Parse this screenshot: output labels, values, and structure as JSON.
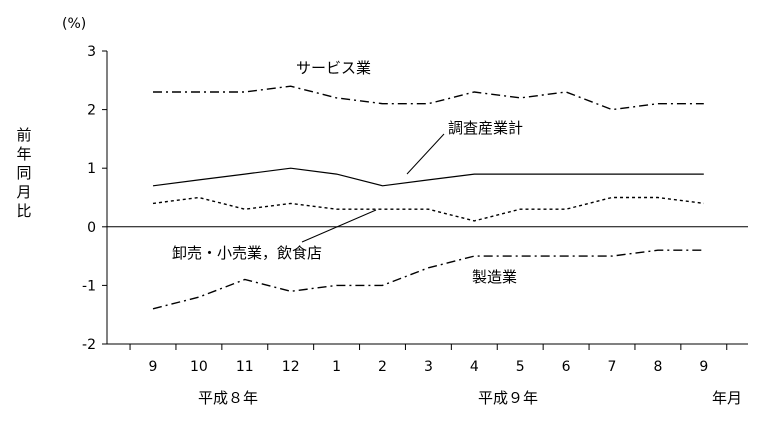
{
  "chart_data": {
    "type": "line",
    "unit_label": "(%)",
    "ylabel": "前年同月比",
    "xlabel": "年月",
    "ylim": [
      -2,
      3
    ],
    "yticks": [
      "-2",
      "-1",
      "0",
      "1",
      "2",
      "3"
    ],
    "categories": [
      "9",
      "10",
      "11",
      "12",
      "1",
      "2",
      "3",
      "4",
      "5",
      "6",
      "7",
      "8",
      "9"
    ],
    "year_labels": [
      "平成８年",
      "平成９年"
    ],
    "series": [
      {
        "name": "サービス業",
        "style": "dash-dot",
        "values": [
          2.3,
          2.3,
          2.3,
          2.4,
          2.2,
          2.1,
          2.1,
          2.3,
          2.2,
          2.3,
          2.0,
          2.1,
          2.1
        ]
      },
      {
        "name": "調査産業計",
        "style": "solid",
        "values": [
          0.7,
          0.8,
          0.9,
          1.0,
          0.9,
          0.7,
          0.8,
          0.9,
          0.9,
          0.9,
          0.9,
          0.9,
          0.9
        ]
      },
      {
        "name": "卸売・小売業，飲食店",
        "style": "dotted",
        "values": [
          0.4,
          0.5,
          0.3,
          0.4,
          0.3,
          0.3,
          0.3,
          0.1,
          0.3,
          0.3,
          0.5,
          0.5,
          0.4
        ]
      },
      {
        "name": "製造業",
        "style": "dash-dot",
        "values": [
          -1.4,
          -1.2,
          -0.9,
          -1.1,
          -1.0,
          -1.0,
          -0.7,
          -0.5,
          -0.5,
          -0.5,
          -0.5,
          -0.4,
          -0.4
        ]
      }
    ]
  }
}
